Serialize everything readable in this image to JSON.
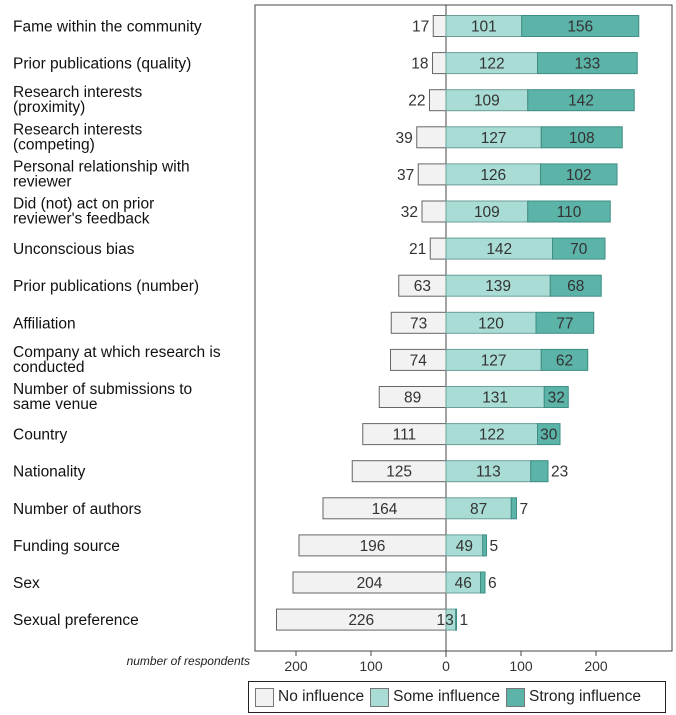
{
  "chart_data": {
    "type": "bar",
    "orientation": "horizontal",
    "stacked": "diverging",
    "xlabel": "number of respondents",
    "x_ticks": [
      "200",
      "100",
      "0",
      "100",
      "200"
    ],
    "categories": [
      "Fame within the community",
      "Prior publications (quality)",
      "Research interests (proximity)",
      "Research interests (competing)",
      "Personal relationship with reviewer",
      "Did (not) act on prior reviewer's feedback",
      "Unconscious bias",
      "Prior publications (number)",
      "Affiliation",
      "Company at which research is conducted",
      "Number of submissions to same venue",
      "Country",
      "Nationality",
      "Number of authors",
      "Funding source",
      "Sex",
      "Sexual preference"
    ],
    "series": [
      {
        "name": "No influence",
        "color": "#f2f2f2",
        "side": "left",
        "values": [
          17,
          18,
          22,
          39,
          37,
          32,
          21,
          63,
          73,
          74,
          89,
          111,
          125,
          164,
          196,
          204,
          226
        ]
      },
      {
        "name": "Some influence",
        "color": "#a9dcd5",
        "side": "right",
        "values": [
          101,
          122,
          109,
          127,
          126,
          109,
          142,
          139,
          120,
          127,
          131,
          122,
          113,
          87,
          49,
          46,
          13
        ]
      },
      {
        "name": "Strong influence",
        "color": "#5cb3a8",
        "side": "right",
        "values": [
          156,
          133,
          142,
          108,
          102,
          110,
          70,
          68,
          77,
          62,
          32,
          30,
          23,
          7,
          5,
          6,
          1
        ]
      }
    ],
    "legend_position": "bottom"
  },
  "legend": {
    "items": [
      {
        "label": "No influence",
        "color": "#f2f2f2"
      },
      {
        "label": "Some influence",
        "color": "#a9dcd5"
      },
      {
        "label": "Strong influence",
        "color": "#5cb3a8"
      }
    ]
  }
}
